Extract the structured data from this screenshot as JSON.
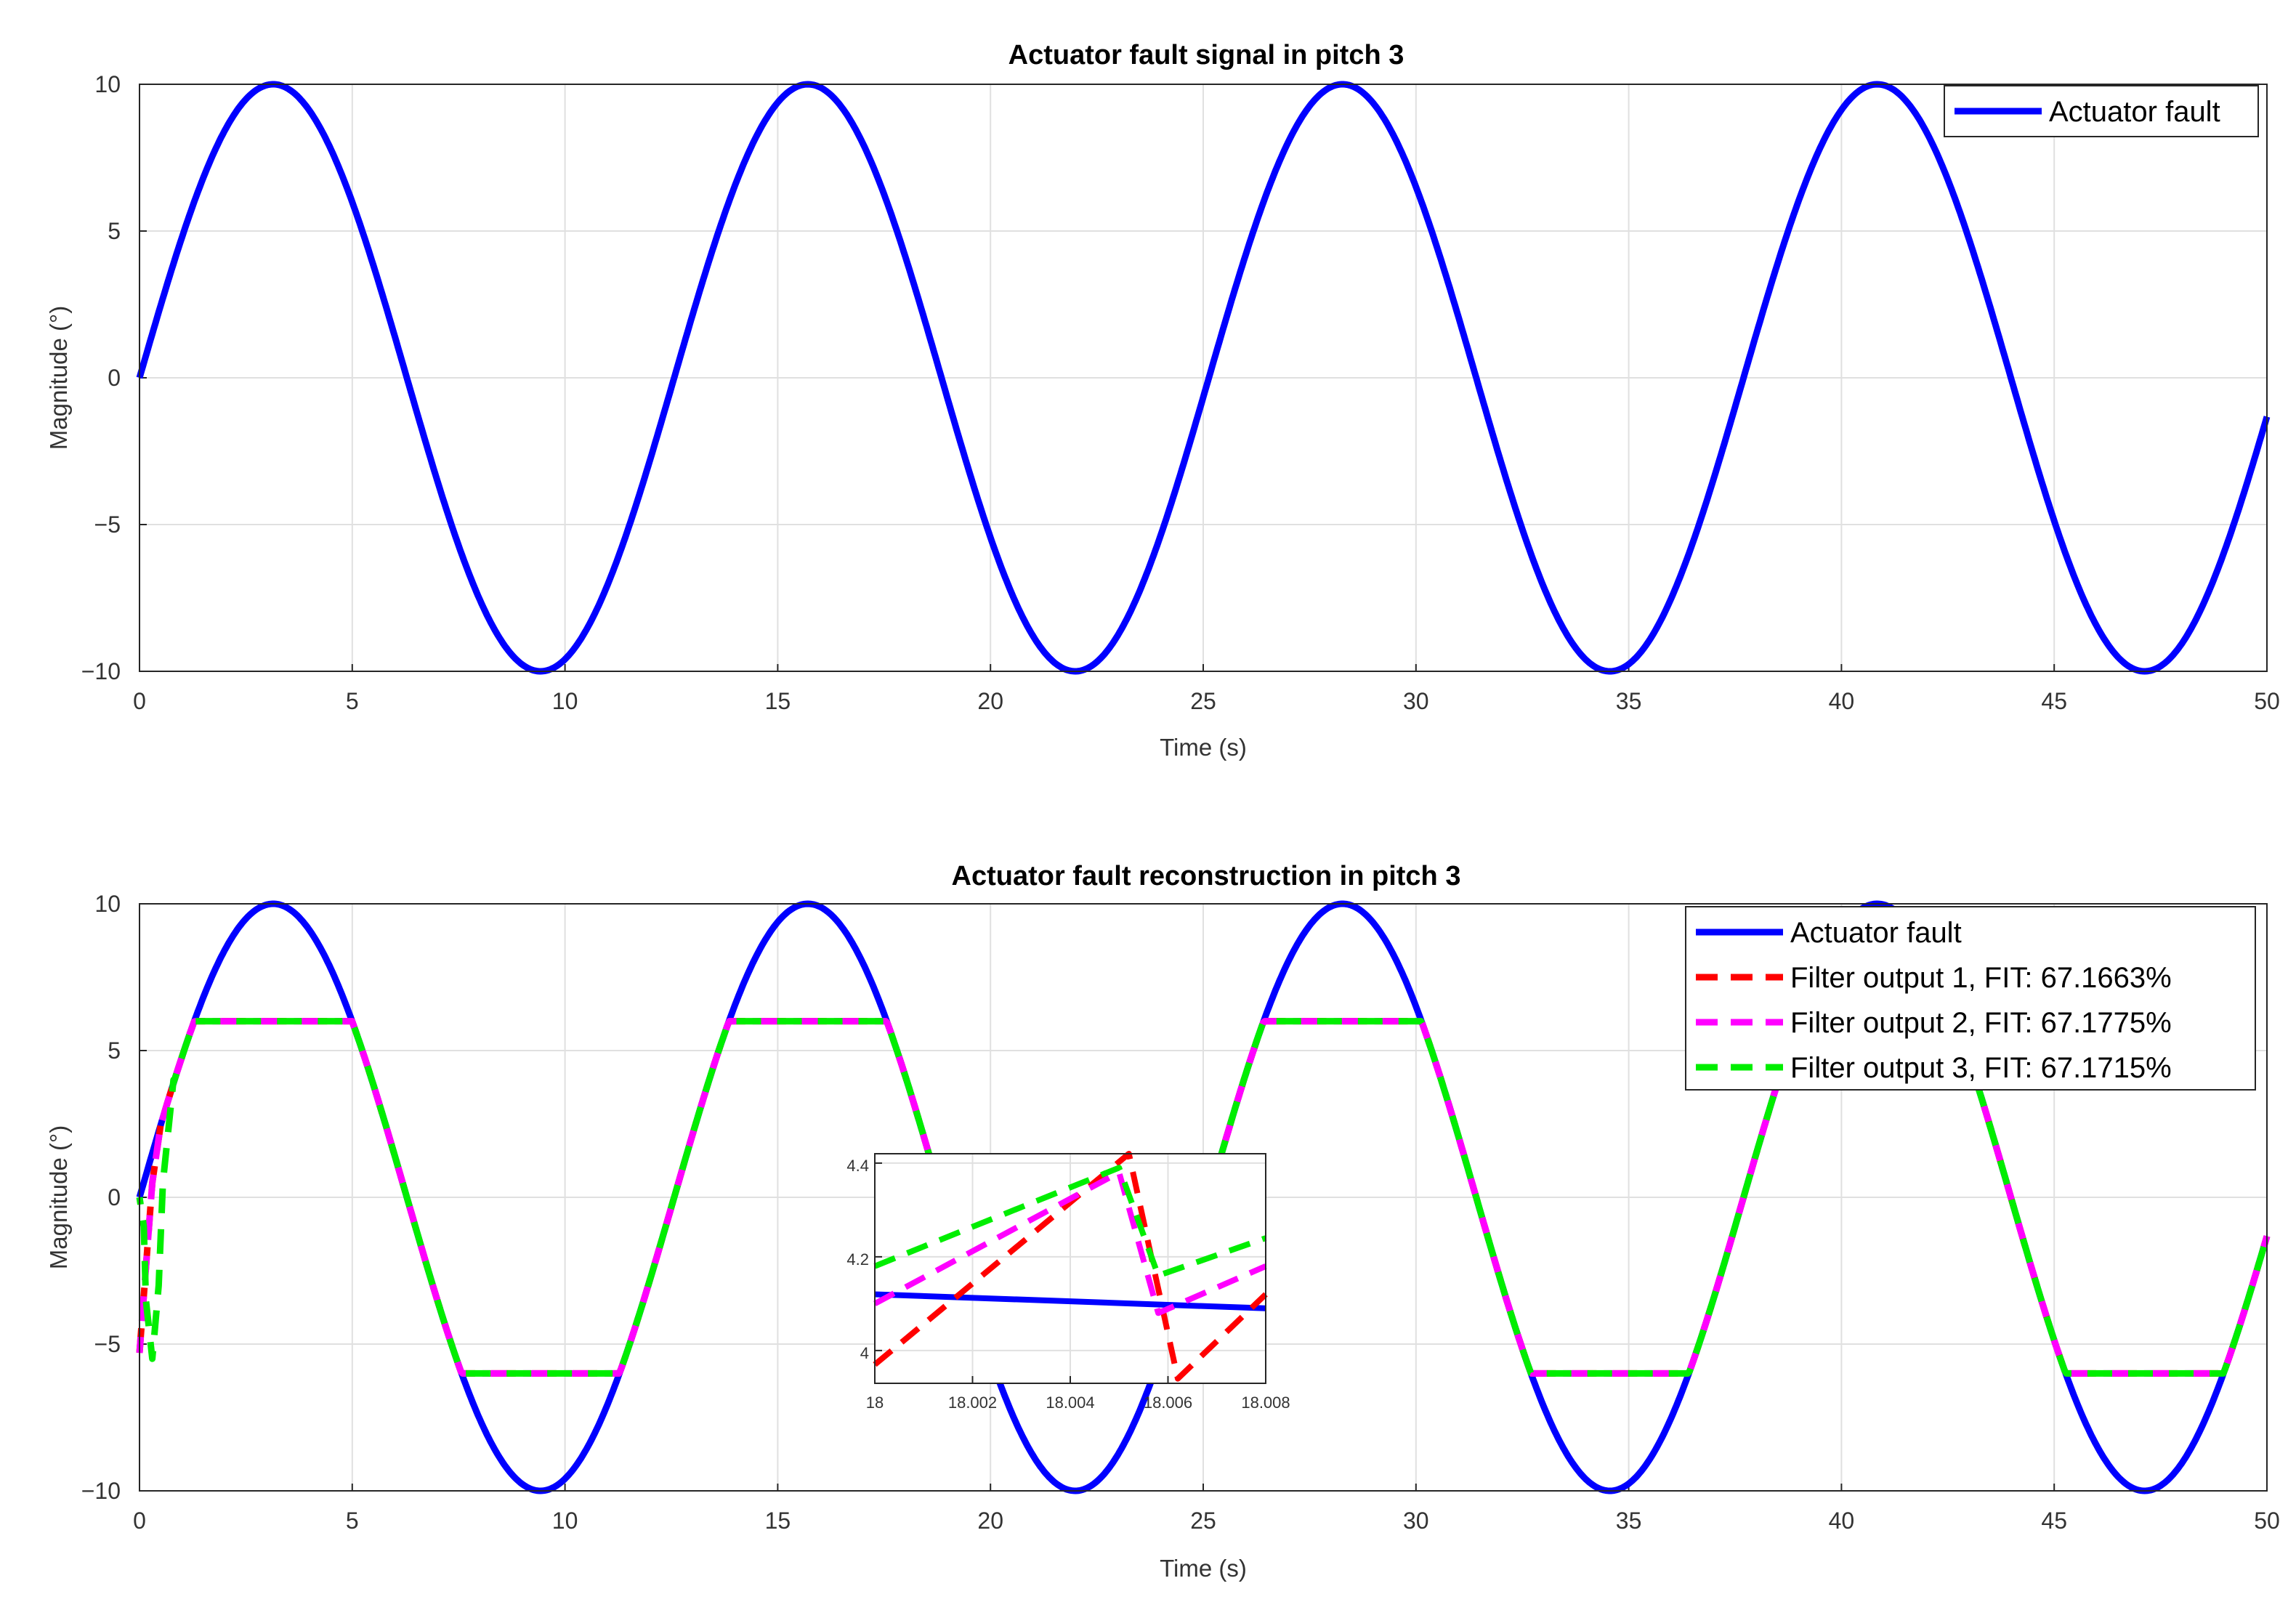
{
  "chart_data": [
    {
      "type": "line",
      "title": "Actuator fault signal in pitch 3",
      "xlabel": "Time (s)",
      "ylabel": "Magnitude (°)",
      "xlim": [
        0,
        50
      ],
      "ylim": [
        -10,
        10
      ],
      "xticks": [
        0,
        5,
        10,
        15,
        20,
        25,
        30,
        35,
        40,
        45,
        50
      ],
      "xtick_labels": [
        "0",
        "5",
        "10",
        "15",
        "20",
        "25",
        "30",
        "35",
        "40",
        "45",
        "50"
      ],
      "yticks": [
        -10,
        -5,
        0,
        5,
        10
      ],
      "ytick_labels": [
        "−10",
        "−5",
        "0",
        "5",
        "10"
      ],
      "grid": true,
      "legend_position": "top-right",
      "series": [
        {
          "name": "Actuator fault",
          "color": "#0000ff",
          "style": "solid",
          "function": "10*sin(t/2)",
          "points": [
            [
              0,
              0
            ],
            [
              3.14,
              10
            ],
            [
              9.42,
              -10
            ],
            [
              15.71,
              10
            ],
            [
              21.99,
              -10
            ],
            [
              28.27,
              10
            ],
            [
              34.56,
              -10
            ],
            [
              40.84,
              10
            ],
            [
              47.12,
              -10
            ],
            [
              50,
              -1.32
            ]
          ]
        }
      ]
    },
    {
      "type": "line",
      "title": "Actuator fault reconstruction in pitch 3",
      "xlabel": "Time (s)",
      "ylabel": "Magnitude (°)",
      "xlim": [
        0,
        50
      ],
      "ylim": [
        -10,
        10
      ],
      "xticks": [
        0,
        5,
        10,
        15,
        20,
        25,
        30,
        35,
        40,
        45,
        50
      ],
      "xtick_labels": [
        "0",
        "5",
        "10",
        "15",
        "20",
        "25",
        "30",
        "35",
        "40",
        "45",
        "50"
      ],
      "yticks": [
        -10,
        -5,
        0,
        5,
        10
      ],
      "ytick_labels": [
        "−10",
        "−5",
        "0",
        "5",
        "10"
      ],
      "grid": true,
      "legend_position": "top-right",
      "saturation_limits": [
        -6,
        6
      ],
      "series": [
        {
          "name": "Actuator fault",
          "color": "#0000ff",
          "style": "solid",
          "function": "10*sin(t/2)"
        },
        {
          "name": "Filter output 1,  FIT: 67.1663%",
          "color": "#ff0000",
          "style": "dashed",
          "function": "clip(10*sin(t/2), -6, 6)",
          "initial_transient": [
            [
              0,
              -5.3
            ],
            [
              0.3,
              0.5
            ],
            [
              0.5,
              2.5
            ]
          ]
        },
        {
          "name": "Filter output 2,  FIT: 67.1775%",
          "color": "#ff00ff",
          "style": "dashed",
          "function": "clip(10*sin(t/2), -6, 6)",
          "initial_transient": [
            [
              0,
              -5.3
            ],
            [
              0.3,
              0.5
            ],
            [
              0.5,
              2.5
            ]
          ]
        },
        {
          "name": "Filter output 3,  FIT: 67.1715%",
          "color": "#00ee00",
          "style": "dashed",
          "function": "clip(10*sin(t/2), -6, 6)",
          "initial_transient": [
            [
              0,
              0
            ],
            [
              0.1,
              -1.0
            ],
            [
              0.15,
              -3.5
            ],
            [
              0.3,
              -5.5
            ],
            [
              0.45,
              -3.0
            ],
            [
              0.55,
              0.5
            ],
            [
              0.8,
              4.0
            ]
          ]
        }
      ],
      "inset": {
        "xlim": [
          18,
          18.008
        ],
        "ylim": [
          3.93,
          4.42
        ],
        "xticks": [
          18,
          18.002,
          18.004,
          18.006,
          18.008
        ],
        "xtick_labels": [
          "18",
          "18.002",
          "18.004",
          "18.006",
          "18.008"
        ],
        "yticks": [
          4,
          4.2,
          4.4
        ],
        "ytick_labels": [
          "4",
          "4.2",
          "4.4"
        ],
        "series": [
          {
            "color": "#0000ff",
            "style": "solid",
            "points": [
              [
                18,
                4.12
              ],
              [
                18.008,
                4.09
              ]
            ]
          },
          {
            "color": "#ff0000",
            "style": "dashed",
            "points": [
              [
                18,
                3.97
              ],
              [
                18.0052,
                4.42
              ],
              [
                18.0062,
                3.94
              ],
              [
                18.008,
                4.12
              ]
            ]
          },
          {
            "color": "#ff00ff",
            "style": "dashed",
            "points": [
              [
                18,
                4.1
              ],
              [
                18.005,
                4.38
              ],
              [
                18.0058,
                4.08
              ],
              [
                18.008,
                4.18
              ]
            ]
          },
          {
            "color": "#00ee00",
            "style": "dashed",
            "points": [
              [
                18,
                4.18
              ],
              [
                18.005,
                4.39
              ],
              [
                18.0058,
                4.16
              ],
              [
                18.008,
                4.24
              ]
            ]
          }
        ]
      }
    }
  ]
}
